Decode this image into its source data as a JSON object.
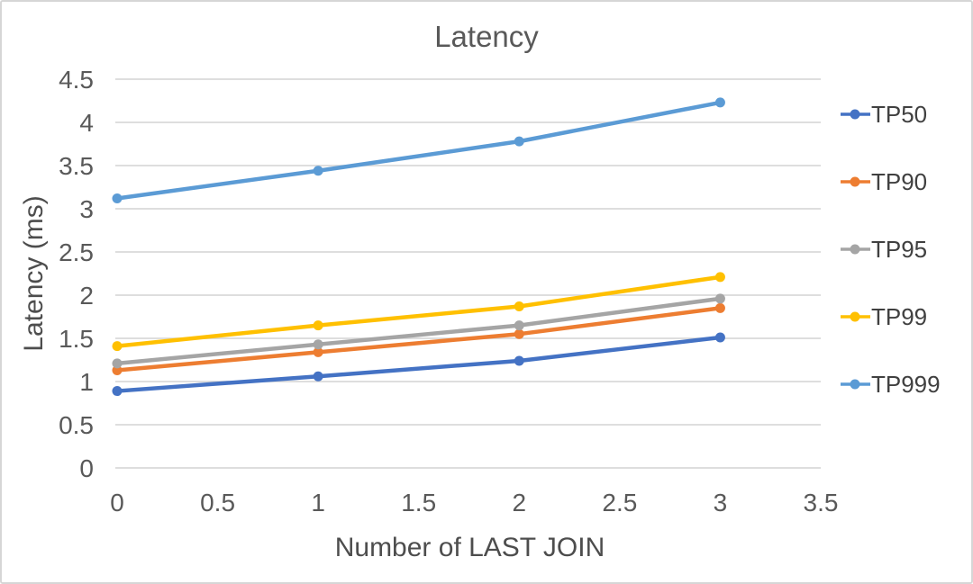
{
  "chart": {
    "title": "Latency",
    "y_axis_title": "Latency (ms)",
    "x_axis_title": "Number of LAST JOIN"
  },
  "chart_data": {
    "type": "line",
    "title": "Latency",
    "xlabel": "Number of LAST JOIN",
    "ylabel": "Latency (ms)",
    "x": [
      0,
      1,
      2,
      3
    ],
    "series": [
      {
        "name": "TP50",
        "color": "#4472C4",
        "values": [
          0.89,
          1.06,
          1.24,
          1.51
        ]
      },
      {
        "name": "TP90",
        "color": "#ED7D31",
        "values": [
          1.13,
          1.34,
          1.55,
          1.85
        ]
      },
      {
        "name": "TP95",
        "color": "#A5A5A5",
        "values": [
          1.21,
          1.43,
          1.65,
          1.96
        ]
      },
      {
        "name": "TP99",
        "color": "#FFC000",
        "values": [
          1.41,
          1.65,
          1.87,
          2.21
        ]
      },
      {
        "name": "TP999",
        "color": "#5B9BD5",
        "values": [
          3.12,
          3.44,
          3.78,
          4.23
        ]
      }
    ],
    "xlim": [
      0,
      3.5
    ],
    "ylim": [
      0,
      4.5
    ],
    "x_ticks": [
      "0",
      "0.5",
      "1",
      "1.5",
      "2",
      "2.5",
      "3",
      "3.5"
    ],
    "y_ticks": [
      "0",
      "0.5",
      "1",
      "1.5",
      "2",
      "2.5",
      "3",
      "3.5",
      "4",
      "4.5"
    ],
    "grid": "horizontal-only",
    "gridline_color": "#D9D9D9",
    "legend_position": "right",
    "marker": "circle"
  }
}
